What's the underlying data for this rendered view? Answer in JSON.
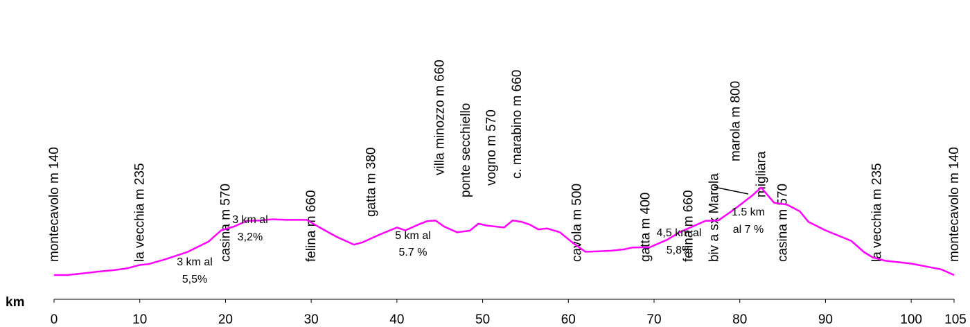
{
  "chart_data": {
    "type": "line",
    "xlabel": "km",
    "xlim": [
      0,
      105
    ],
    "x_ticks": [
      0,
      10,
      20,
      30,
      40,
      50,
      60,
      70,
      80,
      90,
      100,
      105
    ],
    "line_color": "#ff00ff",
    "grid": false,
    "series": [
      {
        "x": [
          0,
          1.5,
          3,
          5,
          7,
          8.5,
          10,
          11,
          13,
          15.5,
          18,
          19.5,
          21,
          22.5,
          24,
          25.5,
          27,
          29.5,
          31,
          33,
          35,
          36,
          38,
          40,
          41,
          42.5,
          43.5,
          44.5,
          45.5,
          47,
          48.5,
          49.5,
          50.5,
          52.5,
          53.5,
          54.5,
          55.5,
          56.5,
          57.5,
          59,
          60.5,
          62,
          63.5,
          65,
          66.5,
          67.5,
          69.5,
          71.5,
          73,
          76,
          77.5,
          79.5,
          81.5,
          82.5,
          84,
          85.5,
          87,
          88,
          90,
          93,
          94.5,
          95.5,
          97,
          100,
          103.5,
          105
        ],
        "y": [
          140,
          140,
          147,
          157,
          166,
          175,
          193,
          197,
          223,
          260,
          315,
          375,
          395,
          425,
          427,
          433,
          430,
          430,
          390,
          340,
          300,
          312,
          353,
          390,
          375,
          405,
          423,
          427,
          395,
          365,
          373,
          410,
          400,
          390,
          427,
          420,
          405,
          380,
          385,
          365,
          310,
          262,
          265,
          268,
          275,
          285,
          286,
          325,
          365,
          425,
          427,
          490,
          560,
          600,
          520,
          510,
          475,
          420,
          375,
          320,
          260,
          233,
          215,
          200,
          170,
          140
        ]
      }
    ],
    "place_labels": [
      {
        "km": 0,
        "text": "montecavolo m 140"
      },
      {
        "km": 10,
        "text": "la vecchia  m 235"
      },
      {
        "km": 20,
        "text": "casina  m 570"
      },
      {
        "km": 30,
        "text": "felina  m 660"
      },
      {
        "km": 37,
        "text": "gatta  m 380"
      },
      {
        "km": 45,
        "text": "villa minozzo   m 660"
      },
      {
        "km": 48,
        "text": "ponte secchiello"
      },
      {
        "km": 51,
        "text": "vogno m 570"
      },
      {
        "km": 54,
        "text": "c. marabino m 660"
      },
      {
        "km": 61,
        "text": "cavola m 500"
      },
      {
        "km": 69,
        "text": "gatta  m 400"
      },
      {
        "km": 74,
        "text": "felina  m 660"
      },
      {
        "km": 77,
        "text": "biv a sx Marola"
      },
      {
        "km": 79.5,
        "text": "marola m 800"
      },
      {
        "km": 82.5,
        "text": "migliara"
      },
      {
        "km": 85,
        "text": "casina m 570"
      },
      {
        "km": 96,
        "text": "la vecchia m 235"
      },
      {
        "km": 105,
        "text": "montecavolo  m 140"
      }
    ],
    "annotations": [
      {
        "lines": [
          "3 km al",
          "5,5%"
        ]
      },
      {
        "lines": [
          "3 km al",
          "3,2%"
        ]
      },
      {
        "lines": [
          "5 km al",
          "5.7 %"
        ]
      },
      {
        "lines": [
          "4,5 km al",
          "5,8%"
        ]
      },
      {
        "lines": [
          "1.5 km",
          "al 7 %"
        ]
      }
    ]
  }
}
